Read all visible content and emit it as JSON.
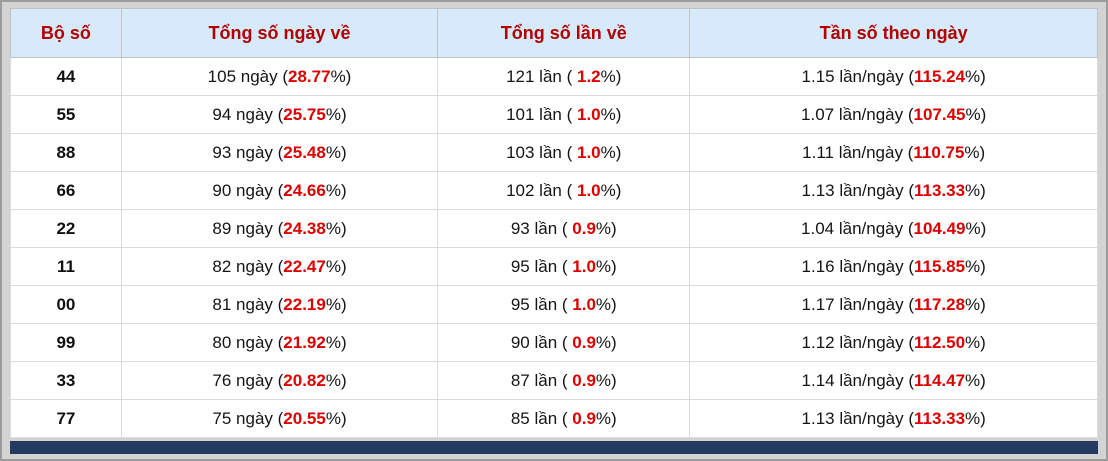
{
  "table": {
    "headers": [
      "Bộ số",
      "Tổng số ngày về",
      "Tổng số lần về",
      "Tần số theo ngày"
    ],
    "rows": [
      {
        "pair": "44",
        "days_pre": "105 ngày (",
        "days_red": "28.77",
        "days_post": "%)",
        "times_pre": "121 lần ( ",
        "times_red": "1.2",
        "times_post": "%)",
        "freq_pre": "1.15 lần/ngày (",
        "freq_red": "115.24",
        "freq_post": "%)"
      },
      {
        "pair": "55",
        "days_pre": "94 ngày (",
        "days_red": "25.75",
        "days_post": "%)",
        "times_pre": "101 lần ( ",
        "times_red": "1.0",
        "times_post": "%)",
        "freq_pre": "1.07 lần/ngày (",
        "freq_red": "107.45",
        "freq_post": "%)"
      },
      {
        "pair": "88",
        "days_pre": "93 ngày (",
        "days_red": "25.48",
        "days_post": "%)",
        "times_pre": "103 lần ( ",
        "times_red": "1.0",
        "times_post": "%)",
        "freq_pre": "1.11 lần/ngày (",
        "freq_red": "110.75",
        "freq_post": "%)"
      },
      {
        "pair": "66",
        "days_pre": "90 ngày (",
        "days_red": "24.66",
        "days_post": "%)",
        "times_pre": "102 lần ( ",
        "times_red": "1.0",
        "times_post": "%)",
        "freq_pre": "1.13 lần/ngày (",
        "freq_red": "113.33",
        "freq_post": "%)"
      },
      {
        "pair": "22",
        "days_pre": "89 ngày (",
        "days_red": "24.38",
        "days_post": "%)",
        "times_pre": "93 lần ( ",
        "times_red": "0.9",
        "times_post": "%)",
        "freq_pre": "1.04 lần/ngày (",
        "freq_red": "104.49",
        "freq_post": "%)"
      },
      {
        "pair": "11",
        "days_pre": "82 ngày (",
        "days_red": "22.47",
        "days_post": "%)",
        "times_pre": "95 lần ( ",
        "times_red": "1.0",
        "times_post": "%)",
        "freq_pre": "1.16 lần/ngày (",
        "freq_red": "115.85",
        "freq_post": "%)"
      },
      {
        "pair": "00",
        "days_pre": "81 ngày (",
        "days_red": "22.19",
        "days_post": "%)",
        "times_pre": "95 lần ( ",
        "times_red": "1.0",
        "times_post": "%)",
        "freq_pre": "1.17 lần/ngày (",
        "freq_red": "117.28",
        "freq_post": "%)"
      },
      {
        "pair": "99",
        "days_pre": "80 ngày (",
        "days_red": "21.92",
        "days_post": "%)",
        "times_pre": "90 lần ( ",
        "times_red": "0.9",
        "times_post": "%)",
        "freq_pre": "1.12 lần/ngày (",
        "freq_red": "112.50",
        "freq_post": "%)"
      },
      {
        "pair": "33",
        "days_pre": "76 ngày (",
        "days_red": "20.82",
        "days_post": "%)",
        "times_pre": "87 lần ( ",
        "times_red": "0.9",
        "times_post": "%)",
        "freq_pre": "1.14 lần/ngày (",
        "freq_red": "114.47",
        "freq_post": "%)"
      },
      {
        "pair": "77",
        "days_pre": "75 ngày (",
        "days_red": "20.55",
        "days_post": "%)",
        "times_pre": "85 lần ( ",
        "times_red": "0.9",
        "times_post": "%)",
        "freq_pre": "1.13 lần/ngày (",
        "freq_red": "113.33",
        "freq_post": "%)"
      }
    ]
  },
  "colors": {
    "header_bg": "#d7eafb",
    "header_text": "#b00000",
    "highlight": "#dd0000",
    "footer_bar": "#253a5e",
    "frame": "#d3d3d3"
  }
}
